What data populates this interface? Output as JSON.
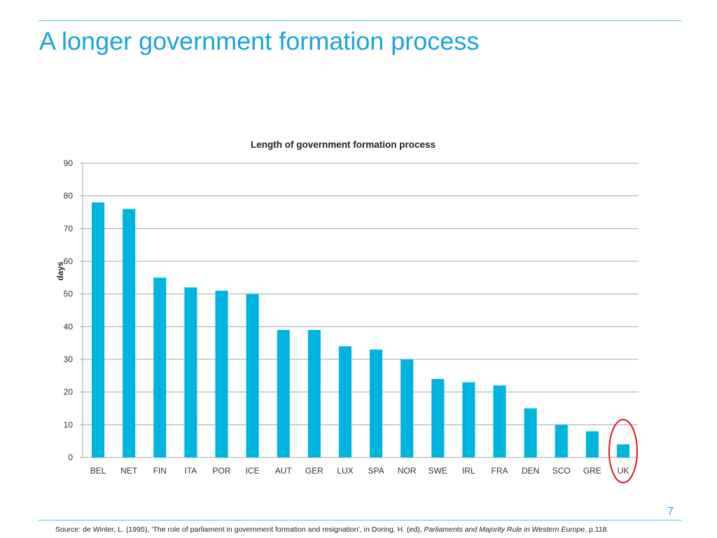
{
  "slide": {
    "title": "A longer government formation process",
    "page_number": "7",
    "source_prefix": "Source: de Winter, L. (1995), ‘The role of parliament in government formation and resignation’, in Doring, H. (ed), ",
    "source_italic": "Parliaments and Majority Rule in Western Europe",
    "source_suffix": ", p.118."
  },
  "colors": {
    "bar": "#00b4e0",
    "accent": "#1aa3dc",
    "highlight_circle": "#e0161b",
    "grid": "#a6a6a6"
  },
  "chart_data": {
    "type": "bar",
    "title": "Length of government formation process",
    "xlabel": "",
    "ylabel": "days",
    "ylim": [
      0,
      90
    ],
    "yticks": [
      0,
      10,
      20,
      30,
      40,
      50,
      60,
      70,
      80,
      90
    ],
    "grid": true,
    "categories": [
      "BEL",
      "NET",
      "FIN",
      "ITA",
      "POR",
      "ICE",
      "AUT",
      "GER",
      "LUX",
      "SPA",
      "NOR",
      "SWE",
      "IRL",
      "FRA",
      "DEN",
      "SCO",
      "GRE",
      "UK"
    ],
    "values": [
      78,
      76,
      55,
      52,
      51,
      50,
      39,
      39,
      34,
      33,
      30,
      24,
      23,
      22,
      15,
      10,
      8,
      4
    ],
    "highlighted_category": "UK"
  }
}
